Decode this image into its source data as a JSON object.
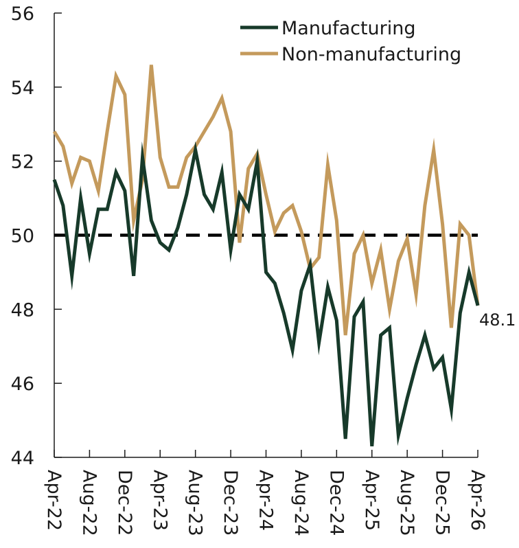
{
  "chart_data": {
    "type": "line",
    "title": "",
    "xlabel": "",
    "ylabel": "",
    "ylim": [
      44,
      56
    ],
    "yticks": [
      44,
      46,
      48,
      50,
      52,
      54,
      56
    ],
    "x_tick_labels": [
      "Apr-22",
      "Aug-22",
      "Dec-22",
      "Apr-23",
      "Aug-23",
      "Dec-23",
      "Apr-24",
      "Aug-24",
      "Dec-24",
      "Apr-25",
      "Aug-25",
      "Dec-25",
      "Apr-26"
    ],
    "reference_line": {
      "value": 50,
      "style": "dashed",
      "color": "#000000"
    },
    "legend_position": "top-right",
    "end_label": "48.1",
    "x": [
      "Apr-22",
      "May-22",
      "Jun-22",
      "Jul-22",
      "Aug-22",
      "Sep-22",
      "Oct-22",
      "Nov-22",
      "Dec-22",
      "Jan-23",
      "Feb-23",
      "Mar-23",
      "Apr-23",
      "May-23",
      "Jun-23",
      "Jul-23",
      "Aug-23",
      "Sep-23",
      "Oct-23",
      "Nov-23",
      "Dec-23",
      "Jan-24",
      "Feb-24",
      "Mar-24",
      "Apr-24",
      "May-24",
      "Jun-24",
      "Jul-24",
      "Aug-24",
      "Sep-24",
      "Oct-24",
      "Nov-24",
      "Dec-24",
      "Jan-25",
      "Feb-25",
      "Mar-25",
      "Apr-25",
      "May-25",
      "Jun-25",
      "Jul-25",
      "Aug-25",
      "Sep-25",
      "Oct-25",
      "Nov-25",
      "Dec-25",
      "Jan-26",
      "Feb-26",
      "Mar-26",
      "Apr-26"
    ],
    "series": [
      {
        "name": "Manufacturing",
        "color": "#173a2a",
        "values": [
          51.5,
          50.8,
          48.9,
          51.0,
          49.5,
          50.7,
          50.7,
          51.7,
          51.2,
          48.9,
          52.1,
          50.4,
          49.8,
          49.6,
          50.2,
          51.1,
          52.3,
          51.1,
          50.7,
          51.7,
          49.6,
          51.1,
          50.7,
          52.0,
          49.0,
          48.7,
          47.9,
          46.9,
          48.5,
          49.2,
          47.1,
          48.6,
          47.7,
          44.5,
          47.8,
          48.2,
          44.3,
          47.3,
          47.5,
          44.6,
          45.6,
          46.5,
          47.3,
          46.4,
          46.7,
          45.3,
          47.9,
          49.0,
          48.1
        ]
      },
      {
        "name": "Non-manufacturing",
        "color": "#c49a5c",
        "values": [
          52.8,
          52.4,
          51.4,
          52.1,
          52.0,
          51.2,
          52.8,
          54.3,
          53.8,
          50.4,
          51.5,
          54.6,
          52.1,
          51.3,
          51.3,
          52.1,
          52.4,
          52.8,
          53.2,
          53.7,
          52.8,
          49.8,
          51.8,
          52.2,
          51.1,
          50.1,
          50.6,
          50.8,
          50.1,
          49.1,
          49.4,
          51.9,
          50.4,
          47.3,
          49.5,
          50.0,
          48.7,
          49.6,
          48.0,
          49.3,
          49.9,
          48.4,
          50.8,
          52.3,
          50.3,
          47.5,
          50.3,
          50.0,
          48.1
        ]
      }
    ]
  }
}
